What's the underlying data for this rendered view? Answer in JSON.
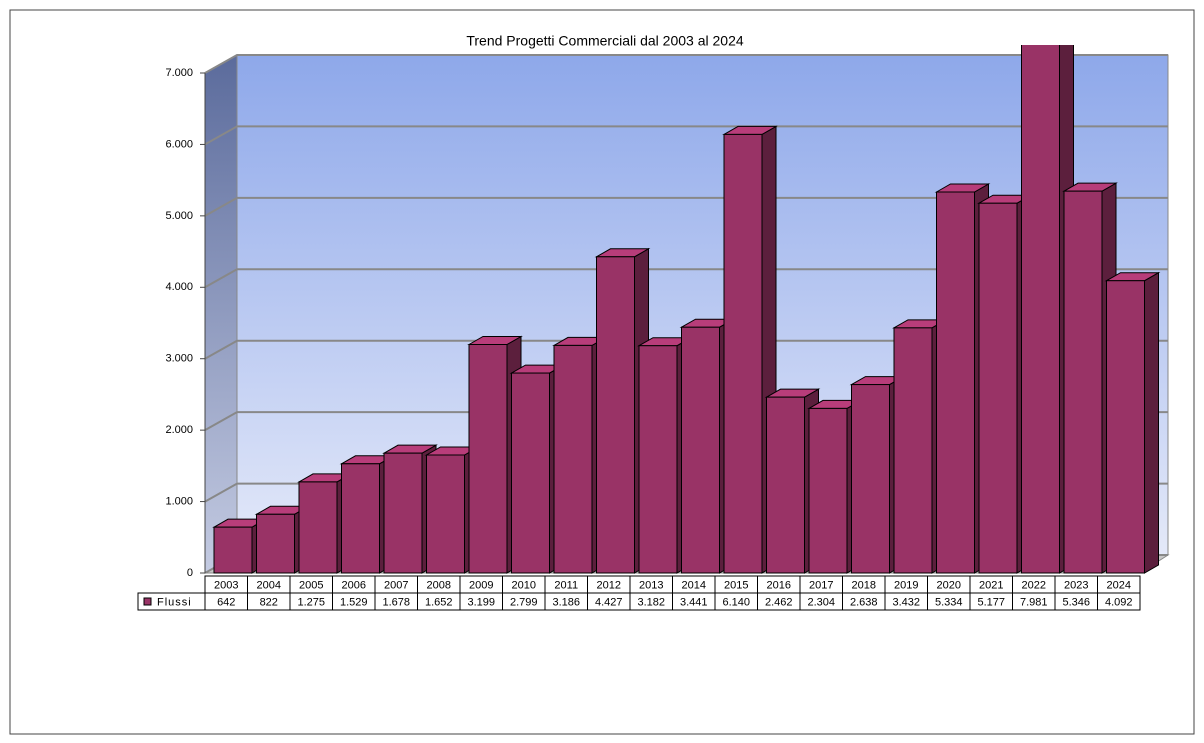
{
  "chart_data": {
    "type": "bar3d",
    "title": "Trend Progetti Commerciali dal 2003 al 2024",
    "categories": [
      "2003",
      "2004",
      "2005",
      "2006",
      "2007",
      "2008",
      "2009",
      "2010",
      "2011",
      "2012",
      "2013",
      "2014",
      "2015",
      "2016",
      "2017",
      "2018",
      "2019",
      "2020",
      "2021",
      "2022",
      "2023",
      "2024"
    ],
    "series": [
      {
        "name": "Flussi",
        "color": "#993366",
        "values": [
          642,
          822,
          1275,
          1529,
          1678,
          1652,
          3199,
          2799,
          3186,
          4427,
          3182,
          3441,
          6140,
          2462,
          2304,
          2638,
          3432,
          5334,
          5177,
          7981,
          5346,
          4092
        ],
        "value_labels": [
          "642",
          "822",
          "1.275",
          "1.529",
          "1.678",
          "1.652",
          "3.199",
          "2.799",
          "3.186",
          "4.427",
          "3.182",
          "3.441",
          "6.140",
          "2.462",
          "2.304",
          "2.638",
          "3.432",
          "5.334",
          "5.177",
          "7.981",
          "5.346",
          "4.092"
        ]
      }
    ],
    "ylim": [
      0,
      7000
    ],
    "yticks": [
      0,
      {
        "value": 1000,
        "label": "1.000"
      },
      {
        "value": 2000,
        "label": "2.000"
      },
      {
        "value": 3000,
        "label": "3.000"
      },
      {
        "value": 4000,
        "label": "4.000"
      },
      {
        "value": 5000,
        "label": "5.000"
      },
      {
        "value": 6000,
        "label": "6.000"
      },
      {
        "value": 7000,
        "label": "7.000"
      }
    ],
    "grid": true
  }
}
